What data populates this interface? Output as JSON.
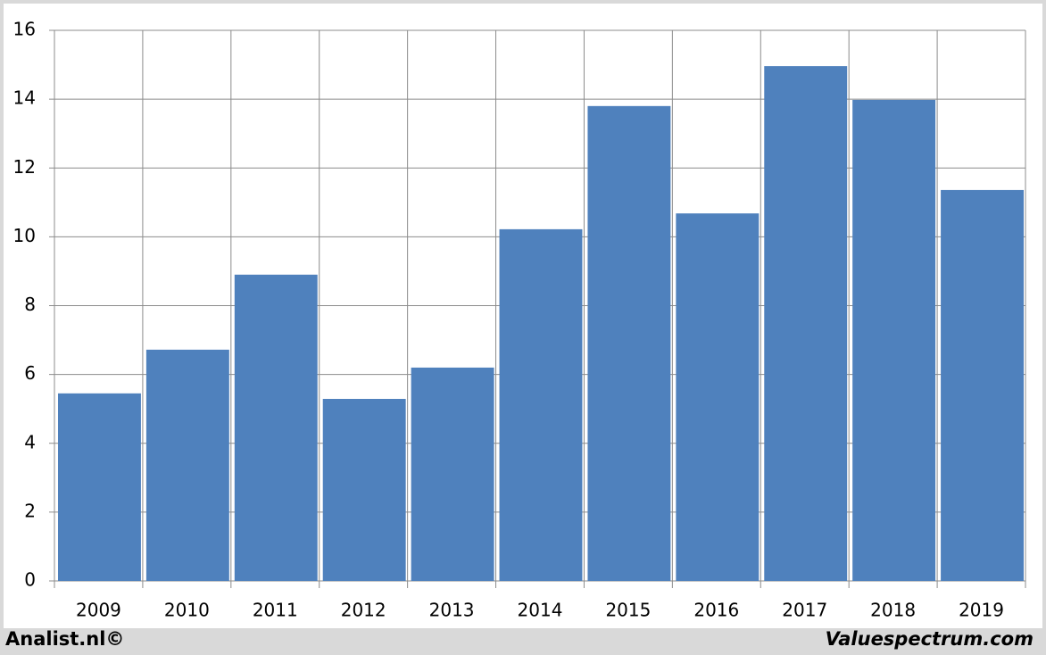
{
  "chart_data": {
    "type": "bar",
    "categories": [
      "2009",
      "2010",
      "2011",
      "2012",
      "2013",
      "2014",
      "2015",
      "2016",
      "2017",
      "2018",
      "2019"
    ],
    "values": [
      5.45,
      6.72,
      8.9,
      5.29,
      6.2,
      10.22,
      13.8,
      10.68,
      14.96,
      13.98,
      11.36
    ],
    "color": "#4f81bd",
    "ylim": [
      0,
      16
    ],
    "yticks": [
      0,
      2,
      4,
      6,
      8,
      10,
      12,
      14,
      16
    ],
    "grid": true
  },
  "footer": {
    "left": "Analist.nl©",
    "right": "Valuespectrum.com"
  }
}
